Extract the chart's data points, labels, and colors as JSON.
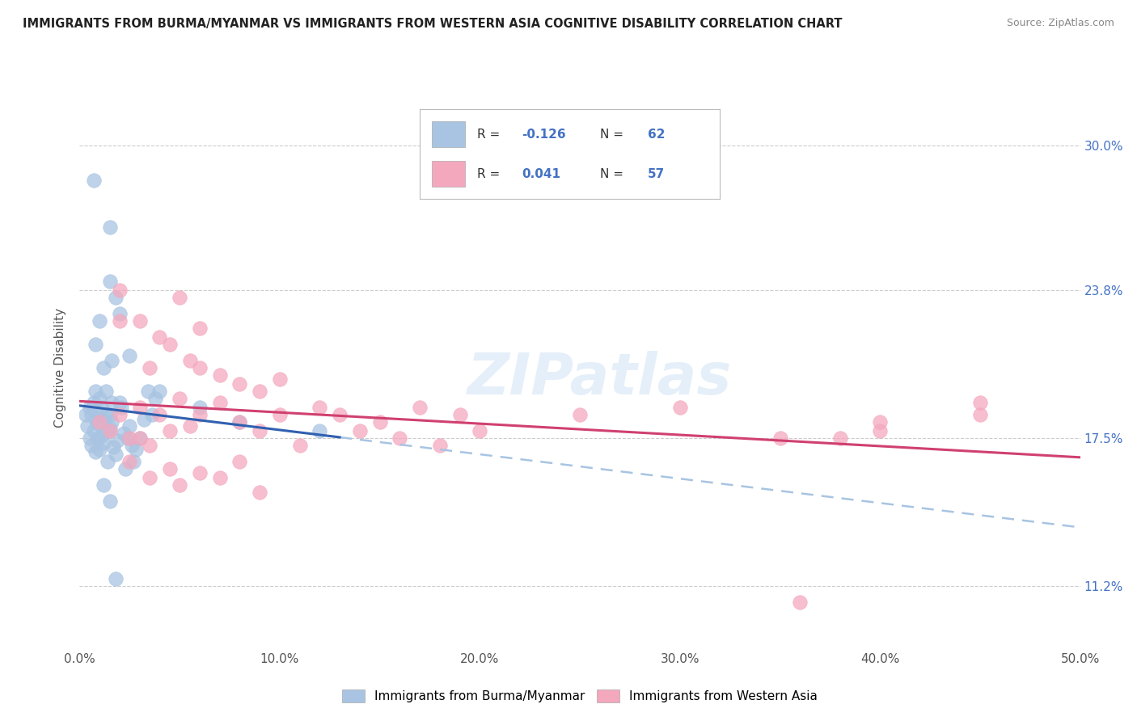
{
  "title": "IMMIGRANTS FROM BURMA/MYANMAR VS IMMIGRANTS FROM WESTERN ASIA COGNITIVE DISABILITY CORRELATION CHART",
  "source": "Source: ZipAtlas.com",
  "ylabel": "Cognitive Disability",
  "xlim": [
    0.0,
    50.0
  ],
  "ylim": [
    8.5,
    32.5
  ],
  "x_ticks": [
    0.0,
    10.0,
    20.0,
    30.0,
    40.0,
    50.0
  ],
  "x_tick_labels": [
    "0.0%",
    "10.0%",
    "20.0%",
    "30.0%",
    "40.0%",
    "50.0%"
  ],
  "y_ticks": [
    11.2,
    17.5,
    23.8,
    30.0
  ],
  "y_tick_labels": [
    "11.2%",
    "17.5%",
    "23.8%",
    "30.0%"
  ],
  "legend_labels": [
    "Immigrants from Burma/Myanmar",
    "Immigrants from Western Asia"
  ],
  "R_blue": -0.126,
  "N_blue": 62,
  "R_pink": 0.041,
  "N_pink": 57,
  "blue_color": "#a8c4e2",
  "pink_color": "#f4a8be",
  "blue_line_color": "#3060b0",
  "pink_line_color": "#d04070",
  "blue_dashed_color": "#a8c4e2",
  "watermark": "ZIPatlas",
  "background_color": "#ffffff",
  "grid_color": "#cccccc",
  "blue_scatter": [
    [
      0.3,
      18.5
    ],
    [
      0.4,
      18.0
    ],
    [
      0.5,
      17.5
    ],
    [
      0.5,
      18.8
    ],
    [
      0.6,
      17.2
    ],
    [
      0.6,
      18.5
    ],
    [
      0.7,
      17.8
    ],
    [
      0.7,
      19.0
    ],
    [
      0.8,
      16.9
    ],
    [
      0.8,
      18.3
    ],
    [
      0.8,
      19.5
    ],
    [
      0.9,
      18.1
    ],
    [
      0.9,
      17.5
    ],
    [
      1.0,
      17.0
    ],
    [
      1.0,
      18.5
    ],
    [
      1.0,
      19.2
    ],
    [
      1.1,
      17.6
    ],
    [
      1.1,
      18.8
    ],
    [
      1.2,
      17.3
    ],
    [
      1.2,
      18.2
    ],
    [
      1.3,
      18.5
    ],
    [
      1.3,
      19.5
    ],
    [
      1.4,
      16.5
    ],
    [
      1.4,
      17.8
    ],
    [
      1.5,
      17.9
    ],
    [
      1.5,
      18.5
    ],
    [
      1.6,
      18.2
    ],
    [
      1.6,
      19.0
    ],
    [
      1.7,
      17.1
    ],
    [
      1.8,
      16.8
    ],
    [
      1.9,
      17.4
    ],
    [
      2.0,
      19.0
    ],
    [
      2.1,
      18.8
    ],
    [
      2.2,
      17.7
    ],
    [
      2.3,
      16.2
    ],
    [
      2.4,
      17.5
    ],
    [
      2.5,
      18.0
    ],
    [
      2.6,
      17.2
    ],
    [
      2.7,
      16.5
    ],
    [
      2.8,
      17.0
    ],
    [
      3.0,
      17.5
    ],
    [
      3.2,
      18.3
    ],
    [
      3.4,
      19.5
    ],
    [
      3.6,
      18.5
    ],
    [
      3.8,
      19.2
    ],
    [
      1.0,
      22.5
    ],
    [
      1.5,
      24.2
    ],
    [
      1.8,
      23.5
    ],
    [
      2.0,
      22.8
    ],
    [
      2.5,
      21.0
    ],
    [
      1.2,
      20.5
    ],
    [
      1.6,
      20.8
    ],
    [
      0.8,
      21.5
    ],
    [
      4.0,
      19.5
    ],
    [
      6.0,
      18.8
    ],
    [
      8.0,
      18.2
    ],
    [
      12.0,
      17.8
    ],
    [
      1.5,
      26.5
    ],
    [
      0.7,
      28.5
    ],
    [
      1.8,
      11.5
    ],
    [
      1.5,
      14.8
    ],
    [
      1.2,
      15.5
    ]
  ],
  "pink_scatter": [
    [
      1.0,
      18.2
    ],
    [
      1.5,
      17.8
    ],
    [
      2.0,
      18.5
    ],
    [
      2.5,
      17.5
    ],
    [
      3.0,
      18.8
    ],
    [
      3.5,
      17.2
    ],
    [
      4.0,
      18.5
    ],
    [
      4.5,
      17.8
    ],
    [
      5.0,
      19.2
    ],
    [
      5.5,
      18.0
    ],
    [
      6.0,
      18.5
    ],
    [
      7.0,
      19.0
    ],
    [
      8.0,
      18.2
    ],
    [
      9.0,
      17.8
    ],
    [
      10.0,
      18.5
    ],
    [
      11.0,
      17.2
    ],
    [
      12.0,
      18.8
    ],
    [
      13.0,
      18.5
    ],
    [
      14.0,
      17.8
    ],
    [
      15.0,
      18.2
    ],
    [
      16.0,
      17.5
    ],
    [
      17.0,
      18.8
    ],
    [
      18.0,
      17.2
    ],
    [
      19.0,
      18.5
    ],
    [
      20.0,
      17.8
    ],
    [
      2.0,
      23.8
    ],
    [
      3.0,
      22.5
    ],
    [
      5.0,
      23.5
    ],
    [
      4.0,
      21.8
    ],
    [
      6.0,
      22.2
    ],
    [
      3.5,
      20.5
    ],
    [
      5.5,
      20.8
    ],
    [
      4.5,
      21.5
    ],
    [
      7.0,
      20.2
    ],
    [
      8.0,
      19.8
    ],
    [
      9.0,
      19.5
    ],
    [
      10.0,
      20.0
    ],
    [
      2.5,
      16.5
    ],
    [
      3.5,
      15.8
    ],
    [
      4.5,
      16.2
    ],
    [
      5.0,
      15.5
    ],
    [
      6.0,
      16.0
    ],
    [
      7.0,
      15.8
    ],
    [
      8.0,
      16.5
    ],
    [
      9.0,
      15.2
    ],
    [
      25.0,
      18.5
    ],
    [
      30.0,
      18.8
    ],
    [
      35.0,
      17.5
    ],
    [
      40.0,
      17.8
    ],
    [
      45.0,
      18.5
    ],
    [
      38.0,
      17.5
    ],
    [
      40.0,
      18.2
    ],
    [
      45.0,
      19.0
    ],
    [
      36.0,
      10.5
    ],
    [
      2.0,
      22.5
    ],
    [
      6.0,
      20.5
    ],
    [
      3.0,
      17.5
    ]
  ],
  "blue_line": [
    [
      0,
      18.8
    ],
    [
      50,
      15.8
    ]
  ],
  "blue_dashed_line": [
    [
      13,
      17.2
    ],
    [
      50,
      14.0
    ]
  ],
  "pink_line": [
    [
      0,
      17.4
    ],
    [
      50,
      18.5
    ]
  ]
}
